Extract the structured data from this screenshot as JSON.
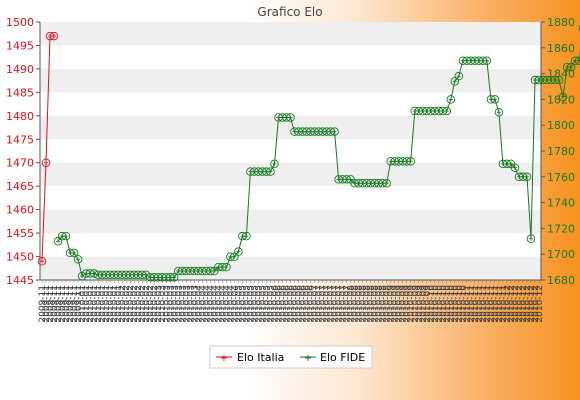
{
  "chart_data": {
    "type": "line",
    "title": "Grafico Elo",
    "colors": {
      "italia": "#e0101a",
      "fide": "#157a1e",
      "band": "#efefef"
    },
    "y_left": {
      "min": 1445,
      "max": 1500,
      "ticks": [
        1445,
        1450,
        1455,
        1460,
        1465,
        1470,
        1475,
        1480,
        1485,
        1490,
        1495,
        1500
      ]
    },
    "y_right": {
      "min": 1680,
      "max": 1880,
      "ticks": [
        1680,
        1700,
        1720,
        1740,
        1760,
        1780,
        1800,
        1820,
        1840,
        1860,
        1880
      ]
    },
    "x_ticks_count": 125,
    "x_tick_text": [
      "2009-11",
      "2010-01",
      "2010-02",
      "2010-03",
      "2010-04",
      "2010-05",
      "2010-06",
      "2010-07",
      "2010-08",
      "2010-09",
      "2010-10",
      "2010-11",
      "2010-12"
    ],
    "legend": {
      "position": "bottom-center"
    },
    "series": [
      {
        "name": "Elo Italia",
        "axis": "left",
        "color": "#e0101a",
        "values": [
          1449,
          1470,
          1497,
          1497
        ]
      },
      {
        "name": "Elo FIDE",
        "axis": "right",
        "color": "#157a1e",
        "start_index": 4,
        "values": [
          1710,
          1714,
          1714,
          1701,
          1701,
          1696,
          1683,
          1685,
          1685,
          1685,
          1684,
          1684,
          1684,
          1684,
          1684,
          1684,
          1684,
          1684,
          1684,
          1684,
          1684,
          1684,
          1684,
          1682,
          1682,
          1682,
          1682,
          1682,
          1682,
          1682,
          1687,
          1687,
          1687,
          1687,
          1687,
          1687,
          1687,
          1687,
          1687,
          1687,
          1690,
          1690,
          1690,
          1698,
          1698,
          1702,
          1714,
          1714,
          1764,
          1764,
          1764,
          1764,
          1764,
          1764,
          1770,
          1806,
          1806,
          1806,
          1806,
          1795,
          1795,
          1795,
          1795,
          1795,
          1795,
          1795,
          1795,
          1795,
          1795,
          1795,
          1758,
          1758,
          1758,
          1758,
          1755,
          1755,
          1755,
          1755,
          1755,
          1755,
          1755,
          1755,
          1755,
          1772,
          1772,
          1772,
          1772,
          1772,
          1772,
          1811,
          1811,
          1811,
          1811,
          1811,
          1811,
          1811,
          1811,
          1811,
          1820,
          1834,
          1838,
          1850,
          1850,
          1850,
          1850,
          1850,
          1850,
          1850,
          1820,
          1820,
          1810,
          1770,
          1770,
          1770,
          1767,
          1760,
          1760,
          1760,
          1712,
          1835,
          1835,
          1835,
          1835,
          1835,
          1835,
          1835,
          1822,
          1845,
          1845,
          1850,
          1850,
          1875,
          1852,
          1852,
          1855,
          1855
        ]
      }
    ]
  }
}
